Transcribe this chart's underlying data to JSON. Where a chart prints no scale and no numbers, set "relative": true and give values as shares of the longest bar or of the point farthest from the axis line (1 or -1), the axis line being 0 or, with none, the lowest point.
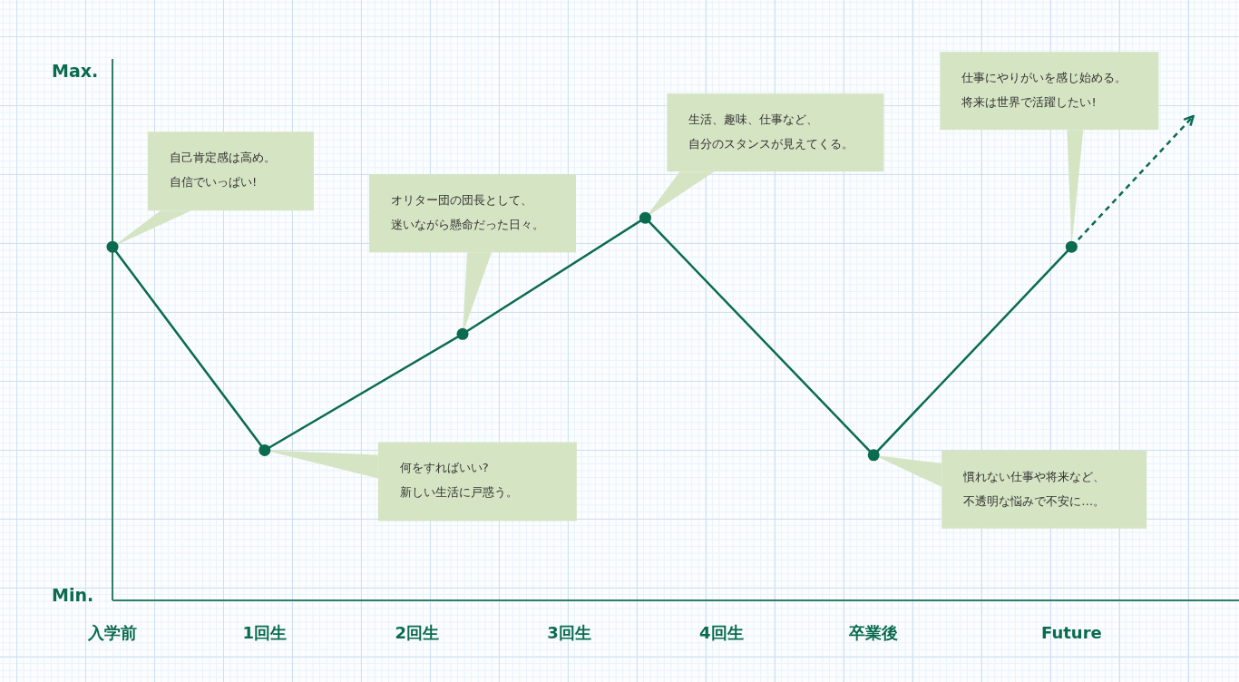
{
  "chart_data": {
    "type": "line",
    "relative": true,
    "xlim": [
      0,
      7.4
    ],
    "xticks": [
      {
        "value": 0,
        "label": "入学前"
      },
      {
        "value": 1,
        "label": "1回生"
      },
      {
        "value": 2,
        "label": "2回生"
      },
      {
        "value": 3,
        "label": "3回生"
      },
      {
        "value": 4,
        "label": "4回生"
      },
      {
        "value": 5,
        "label": "卒業後"
      },
      {
        "value": 6.3,
        "label": "Future"
      }
    ],
    "marker": "circle",
    "line_style": "solid",
    "series": [
      {
        "color": "#0b6b4f",
        "x": [
          0,
          1,
          2.3,
          3.5,
          5,
          6.3
        ],
        "values": [
          0.73,
          0.31,
          0.55,
          0.79,
          0.3,
          0.73
        ]
      },
      {
        "color": "#0b6b4f",
        "x": [
          6.3,
          7.1
        ],
        "values": [
          0.73,
          1
        ],
        "marker": "none",
        "line_style": "dashed"
      }
    ],
    "annotations": [
      "Max.",
      "Min.",
      "自己肯定感は高め。自信でいっぱい!",
      "何をすればいい?新しい生活に戸惑う。",
      "オリター団の団長として、迷いながら懸命だった日々。",
      "生活、趣味、仕事など、自分のスタンスが見えてくる。",
      "慣れない仕事や将来など、不透明な悩みで不安に…。",
      "仕事にやりがいを感じ始める。将来は世界で活躍したい!"
    ]
  }
}
